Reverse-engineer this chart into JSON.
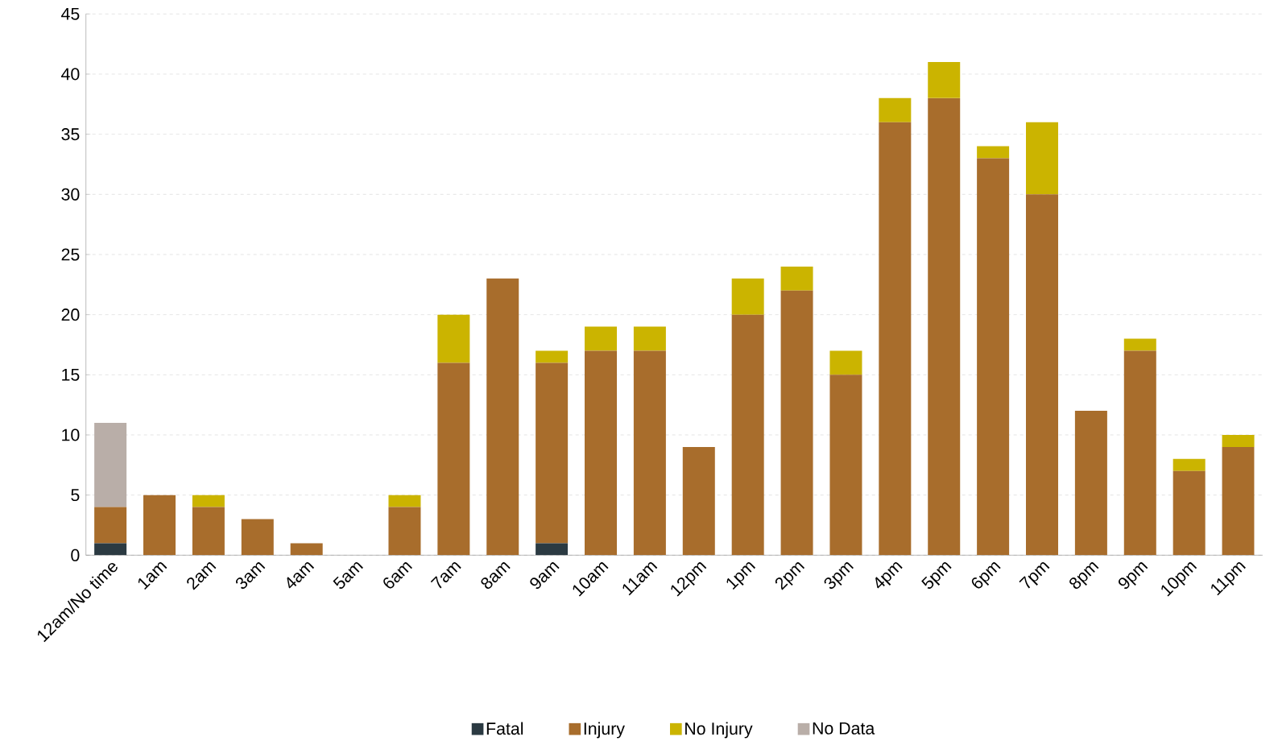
{
  "chart_data": {
    "type": "bar",
    "stacked": true,
    "categories": [
      "12am/No time",
      "1am",
      "2am",
      "3am",
      "4am",
      "5am",
      "6am",
      "7am",
      "8am",
      "9am",
      "10am",
      "11am",
      "12pm",
      "1pm",
      "2pm",
      "3pm",
      "4pm",
      "5pm",
      "6pm",
      "7pm",
      "8pm",
      "9pm",
      "10pm",
      "11pm"
    ],
    "series": [
      {
        "name": "Fatal",
        "color": "#2b3a42",
        "values": [
          1,
          0,
          0,
          0,
          0,
          0,
          0,
          0,
          0,
          1,
          0,
          0,
          0,
          0,
          0,
          0,
          0,
          0,
          0,
          0,
          0,
          0,
          0,
          0
        ]
      },
      {
        "name": "Injury",
        "color": "#a86d2c",
        "values": [
          3,
          5,
          4,
          3,
          1,
          0,
          4,
          16,
          23,
          15,
          17,
          17,
          9,
          20,
          22,
          15,
          36,
          38,
          33,
          30,
          12,
          17,
          7,
          9
        ]
      },
      {
        "name": "No Injury",
        "color": "#cbb400",
        "values": [
          0,
          0,
          1,
          0,
          0,
          0,
          1,
          4,
          0,
          1,
          2,
          2,
          0,
          3,
          2,
          2,
          2,
          3,
          1,
          6,
          0,
          1,
          1,
          1
        ]
      },
      {
        "name": "No Data",
        "color": "#b9aea8",
        "values": [
          7,
          0,
          0,
          0,
          0,
          0,
          0,
          0,
          0,
          0,
          0,
          0,
          0,
          0,
          0,
          0,
          0,
          0,
          0,
          0,
          0,
          0,
          0,
          0
        ]
      }
    ],
    "ylim": [
      0,
      45
    ],
    "yticks": [
      0,
      5,
      10,
      15,
      20,
      25,
      30,
      35,
      40,
      45
    ],
    "grid": "y",
    "legend": "bottom"
  }
}
